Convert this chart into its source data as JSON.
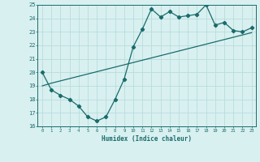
{
  "xlabel": "Humidex (Indice chaleur)",
  "x": [
    0,
    1,
    2,
    3,
    4,
    5,
    6,
    7,
    8,
    9,
    10,
    11,
    12,
    13,
    14,
    15,
    16,
    17,
    18,
    19,
    20,
    21,
    22,
    23
  ],
  "y_main": [
    20,
    18.7,
    18.3,
    18.0,
    17.5,
    16.7,
    16.4,
    16.7,
    18.0,
    19.5,
    21.9,
    23.2,
    24.7,
    24.1,
    24.5,
    24.1,
    24.2,
    24.3,
    25.0,
    23.5,
    23.7,
    23.1,
    23.0,
    23.3
  ],
  "y_trend": [
    19.0,
    19.2,
    19.37,
    19.54,
    19.71,
    19.88,
    20.05,
    20.22,
    20.39,
    20.56,
    20.73,
    20.9,
    21.07,
    21.24,
    21.41,
    21.58,
    21.75,
    21.92,
    22.09,
    22.26,
    22.43,
    22.6,
    22.77,
    22.94
  ],
  "ylim": [
    16,
    25
  ],
  "xlim_min": -0.5,
  "xlim_max": 23.5,
  "yticks": [
    16,
    17,
    18,
    19,
    20,
    21,
    22,
    23,
    24,
    25
  ],
  "xticks": [
    0,
    1,
    2,
    3,
    4,
    5,
    6,
    7,
    8,
    9,
    10,
    11,
    12,
    13,
    14,
    15,
    16,
    17,
    18,
    19,
    20,
    21,
    22,
    23
  ],
  "line_color": "#1a6b6b",
  "bg_color": "#d9f0f0",
  "grid_color": "#b8dcdc"
}
